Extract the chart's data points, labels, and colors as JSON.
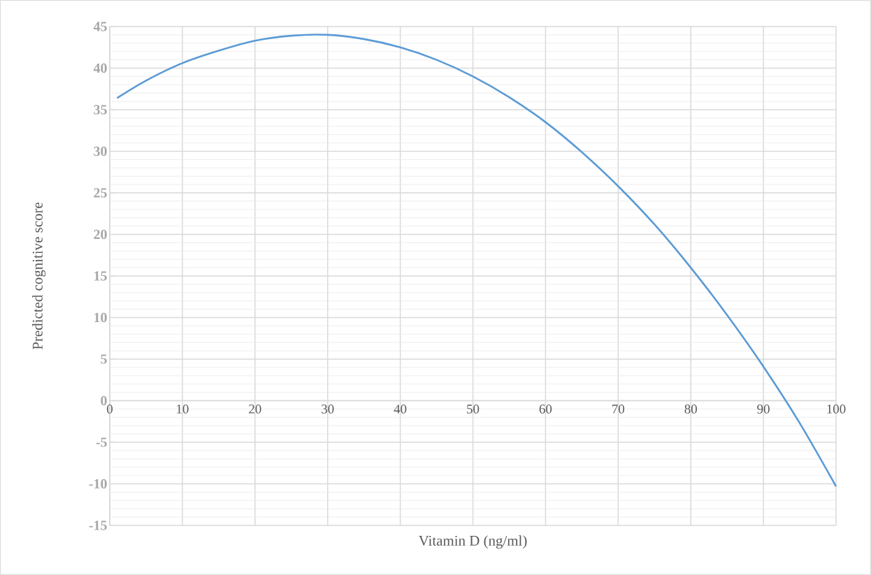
{
  "chart_data": {
    "type": "line",
    "xlabel": "Vitamin D (ng/ml)",
    "ylabel": "Predicted cognitive score",
    "x": [
      1,
      5,
      10,
      15,
      20,
      25,
      30,
      35,
      40,
      45,
      50,
      55,
      60,
      65,
      70,
      75,
      80,
      85,
      90,
      95,
      100
    ],
    "values": [
      36.4,
      38.5,
      40.6,
      42.1,
      43.3,
      43.9,
      44.0,
      43.5,
      42.5,
      41.0,
      39.0,
      36.5,
      33.5,
      29.9,
      25.8,
      21.2,
      16.0,
      10.3,
      4.1,
      -2.7,
      -10.3
    ],
    "color": "#5b9bd5",
    "xlim": [
      0,
      100
    ],
    "ylim": [
      -15,
      45
    ],
    "xticks": [
      0,
      10,
      20,
      30,
      40,
      50,
      60,
      70,
      80,
      90,
      100
    ],
    "yticks": [
      -15,
      -10,
      -5,
      0,
      5,
      10,
      15,
      20,
      25,
      30,
      35,
      40,
      45
    ],
    "grid": true
  }
}
